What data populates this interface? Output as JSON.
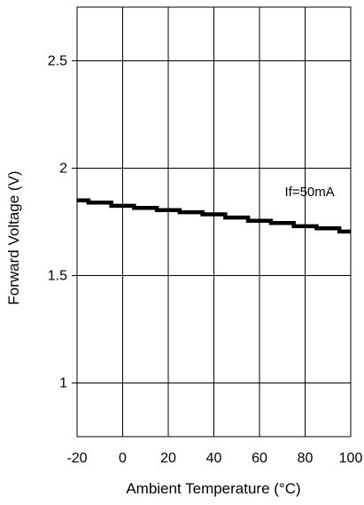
{
  "chart_data": {
    "type": "line",
    "title": "",
    "xlabel": "Ambient Temperature (°C)",
    "ylabel": "Forward Voltage (V)",
    "xlim": [
      -20,
      100
    ],
    "ylim": [
      0.75,
      2.75
    ],
    "xticks": [
      -20,
      0,
      20,
      40,
      60,
      80,
      100
    ],
    "xtick_labels": [
      "-20",
      "0",
      "20",
      "40",
      "60",
      "80",
      "100"
    ],
    "yticks": [
      1,
      1.5,
      2,
      2.5
    ],
    "ytick_labels": [
      "1",
      "1.5",
      "2",
      "2.5"
    ],
    "grid": true,
    "legend": "none",
    "line_color": "#000000",
    "series": [
      {
        "name": "If=50mA",
        "x": [
          -20,
          -10,
          0,
          10,
          20,
          30,
          40,
          50,
          60,
          70,
          80,
          90,
          100
        ],
        "y": [
          1.85,
          1.84,
          1.825,
          1.815,
          1.805,
          1.795,
          1.785,
          1.77,
          1.755,
          1.745,
          1.73,
          1.72,
          1.705
        ]
      }
    ],
    "annotations": [
      {
        "text": "If=50mA",
        "x": 82,
        "y": 1.87
      }
    ]
  }
}
